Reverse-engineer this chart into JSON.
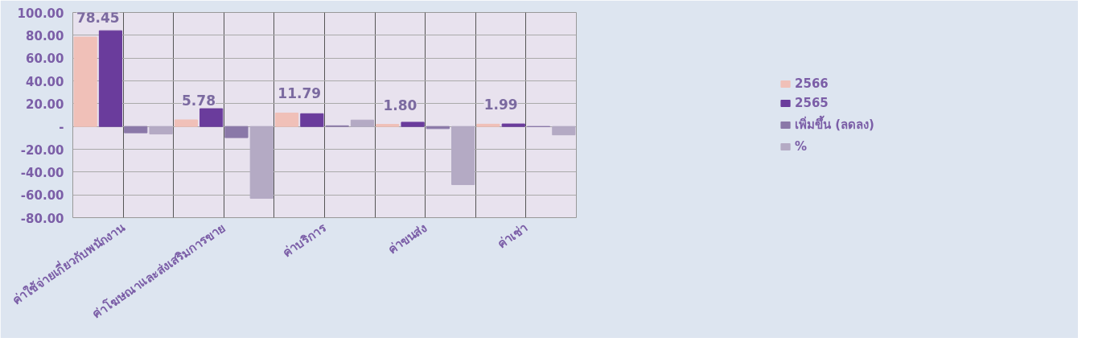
{
  "chart_data": {
    "type": "bar",
    "categories": [
      "ค่าใช้จ่ายเกี่ยวกับพนักงาน",
      "ค่าโฆษณาและส่งเสริมการขาย",
      "ค่าบริการ",
      "ค่าขนส่ง",
      "ค่าเช่า"
    ],
    "series": [
      {
        "name": "2566",
        "color": "#f0c0b8",
        "values": [
          78.45,
          5.78,
          11.79,
          1.8,
          1.99
        ],
        "value_labels": [
          "78.45",
          "5.78",
          "11.79",
          "1.80",
          "1.99"
        ]
      },
      {
        "name": "2565",
        "color": "#6a3c9c",
        "values": [
          84.0,
          15.6,
          11.2,
          3.7,
          2.2
        ]
      },
      {
        "name": "เพิ่มขึ้น (ลดลง)",
        "color": "#8a78a8",
        "values": [
          -5.6,
          -9.8,
          0.6,
          -1.9,
          -0.2
        ]
      },
      {
        "name": "%",
        "color": "#b4aac4",
        "values": [
          -6.6,
          -63,
          5.6,
          -51,
          -7.4
        ]
      }
    ],
    "ylim": [
      -80,
      100
    ],
    "yticks": [
      {
        "value": -80,
        "label": "-80.00"
      },
      {
        "value": -60,
        "label": "-60.00"
      },
      {
        "value": -40,
        "label": "-40.00"
      },
      {
        "value": -20,
        "label": "-20.00"
      },
      {
        "value": 0,
        "label": "-"
      },
      {
        "value": 20,
        "label": "20.00"
      },
      {
        "value": 40,
        "label": "40.00"
      },
      {
        "value": 60,
        "label": "60.00"
      },
      {
        "value": 80,
        "label": "80.00"
      },
      {
        "value": 100,
        "label": "100.00"
      }
    ],
    "grid": true,
    "legend": "right"
  }
}
